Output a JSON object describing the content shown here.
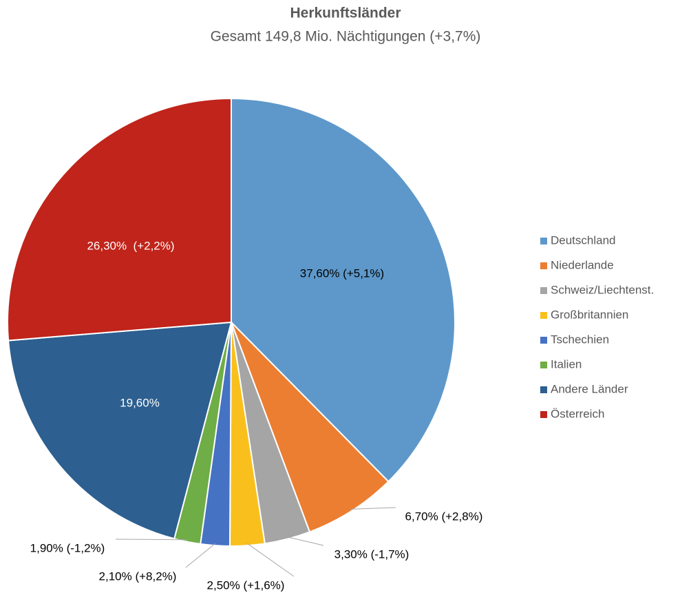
{
  "chart_data": {
    "type": "pie",
    "title": "Herkunftsländer",
    "subtitle": "Gesamt 149,8 Mio. Nächtigungen (+3,7%)",
    "categories": [
      "Deutschland",
      "Niederlande",
      "Schweiz/Liechtenst.",
      "Großbritannien",
      "Tschechien",
      "Italien",
      "Andere Länder",
      "Österreich"
    ],
    "values": [
      37.6,
      6.7,
      3.3,
      2.5,
      2.1,
      1.9,
      19.6,
      26.3
    ],
    "value_labels": [
      "37,60% (+5,1%)",
      "6,70% (+2,8%)",
      "3,30% (-1,7%)",
      "2,50% (+1,6%)",
      "2,10% (+8,2%)",
      "1,90% (-1,2%)",
      "19,60%",
      "26,30%  (+2,2%)"
    ],
    "colors": [
      "#5e98ca",
      "#ec7e31",
      "#a5a5a5",
      "#f9c01d",
      "#4672c4",
      "#6fad46",
      "#2d5f90",
      "#c0241a"
    ],
    "legend": "right"
  }
}
